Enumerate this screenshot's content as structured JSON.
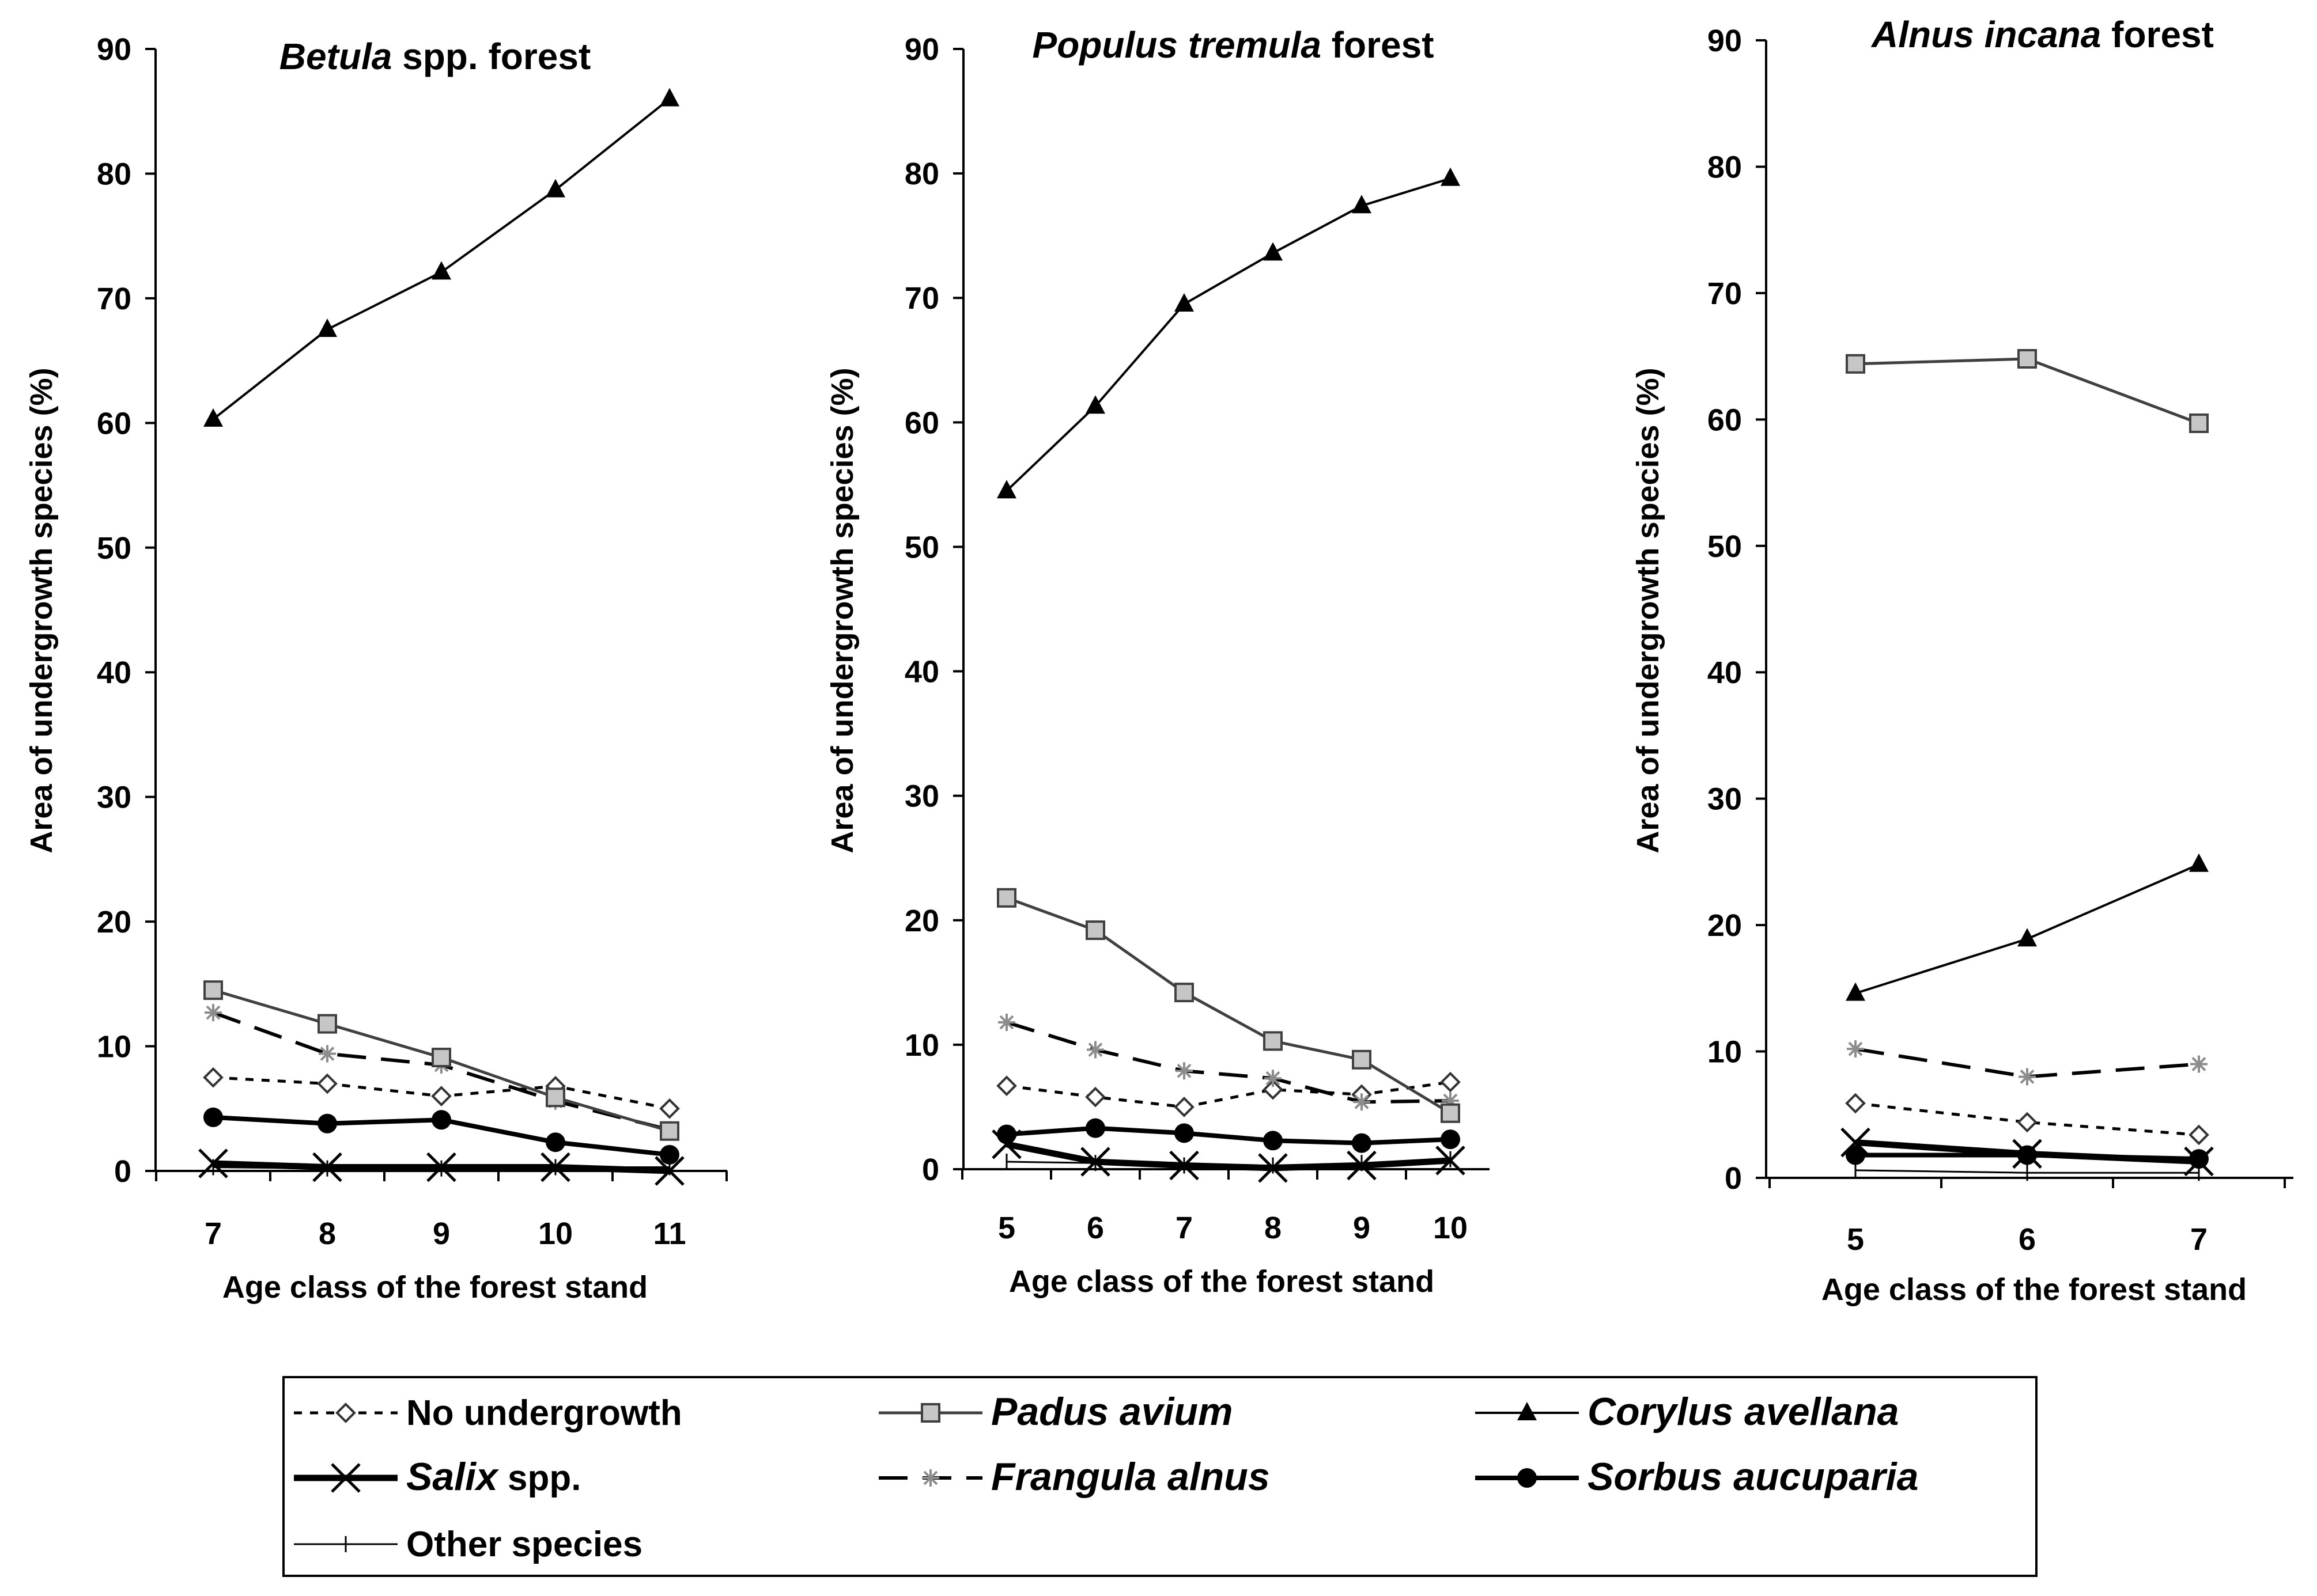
{
  "chart_data": [
    {
      "type": "line",
      "title_italic": "Betula",
      "title_rest": " spp. forest",
      "xlabel": "Age class of the forest stand",
      "ylabel": "Area of undergrowth species (%)",
      "ylim": [
        0,
        90
      ],
      "yticks": [
        "0",
        "10",
        "20",
        "30",
        "40",
        "50",
        "60",
        "70",
        "80",
        "90"
      ],
      "categories": [
        "7",
        "8",
        "9",
        "10",
        "11"
      ],
      "series": [
        {
          "name": "No undergrowth",
          "values": [
            7.5,
            7.0,
            6.0,
            6.8,
            5.0
          ]
        },
        {
          "name": "Padus avium",
          "values": [
            14.5,
            11.8,
            9.1,
            5.9,
            3.2
          ]
        },
        {
          "name": "Corylus avellana",
          "values": [
            60.3,
            67.5,
            72.1,
            78.7,
            86.0
          ]
        },
        {
          "name": "Salix spp.",
          "values": [
            0.6,
            0.3,
            0.3,
            0.3,
            0.0
          ]
        },
        {
          "name": "Frangula alnus",
          "values": [
            12.7,
            9.4,
            8.5,
            5.6,
            3.3
          ]
        },
        {
          "name": "Sorbus aucuparia",
          "values": [
            4.3,
            3.8,
            4.1,
            2.3,
            1.3
          ]
        },
        {
          "name": "Other species",
          "values": [
            0.3,
            0.2,
            0.2,
            0.3,
            0.3
          ]
        }
      ]
    },
    {
      "type": "line",
      "title_italic": "Populus tremula",
      "title_rest": " forest",
      "xlabel": "Age class of the forest stand",
      "ylabel": "Area of undergrowth species (%)",
      "ylim": [
        0,
        90
      ],
      "yticks": [
        "0",
        "10",
        "20",
        "30",
        "40",
        "50",
        "60",
        "70",
        "80",
        "90"
      ],
      "categories": [
        "5",
        "6",
        "7",
        "8",
        "9",
        "10"
      ],
      "series": [
        {
          "name": "No undergrowth",
          "values": [
            6.7,
            5.8,
            5.0,
            6.4,
            6.0,
            7.0
          ]
        },
        {
          "name": "Padus avium",
          "values": [
            21.8,
            19.2,
            14.2,
            10.3,
            8.8,
            4.5
          ]
        },
        {
          "name": "Corylus avellana",
          "values": [
            54.5,
            61.3,
            69.5,
            73.6,
            77.4,
            79.6
          ]
        },
        {
          "name": "Salix spp.",
          "values": [
            2.0,
            0.6,
            0.3,
            0.1,
            0.3,
            0.7
          ]
        },
        {
          "name": "Frangula alnus",
          "values": [
            11.8,
            9.6,
            7.9,
            7.3,
            5.4,
            5.5
          ]
        },
        {
          "name": "Sorbus aucuparia",
          "values": [
            2.8,
            3.3,
            2.9,
            2.3,
            2.1,
            2.4
          ]
        },
        {
          "name": "Other species",
          "values": [
            0.6,
            0.5,
            0.3,
            0.3,
            0.5,
            0.8
          ]
        }
      ]
    },
    {
      "type": "line",
      "title_italic": "Alnus incana",
      "title_rest": "  forest",
      "xlabel": "Age class of the forest stand",
      "ylabel": "Area of undergrowth species (%)",
      "ylim": [
        0,
        90
      ],
      "yticks": [
        "0",
        "10",
        "20",
        "30",
        "40",
        "50",
        "60",
        "70",
        "80",
        "90"
      ],
      "categories": [
        "5",
        "6",
        "7"
      ],
      "series": [
        {
          "name": "No undergrowth",
          "values": [
            5.9,
            4.4,
            3.4
          ]
        },
        {
          "name": "Padus avium",
          "values": [
            64.4,
            64.8,
            59.7
          ]
        },
        {
          "name": "Corylus avellana",
          "values": [
            14.6,
            18.9,
            24.8
          ]
        },
        {
          "name": "Salix spp.",
          "values": [
            2.8,
            1.9,
            1.3
          ]
        },
        {
          "name": "Frangula alnus",
          "values": [
            10.2,
            8.0,
            9.0
          ]
        },
        {
          "name": "Sorbus aucuparia",
          "values": [
            1.8,
            1.8,
            1.5
          ]
        },
        {
          "name": "Other species",
          "values": [
            0.6,
            0.4,
            0.4
          ]
        }
      ]
    }
  ],
  "legend": {
    "items": [
      {
        "name": "No undergrowth",
        "label_italic": "",
        "label_rest": "No undergrowth"
      },
      {
        "name": "Padus avium",
        "label_italic": "Padus avium",
        "label_rest": ""
      },
      {
        "name": "Corylus avellana",
        "label_italic": "Corylus avellana",
        "label_rest": ""
      },
      {
        "name": "Salix spp.",
        "label_italic": "Salix",
        "label_rest": " spp."
      },
      {
        "name": "Frangula alnus",
        "label_italic": "Frangula alnus",
        "label_rest": ""
      },
      {
        "name": "Sorbus aucuparia",
        "label_italic": "Sorbus aucuparia",
        "label_rest": ""
      },
      {
        "name": "Other species",
        "label_italic": "",
        "label_rest": "Other species"
      }
    ]
  }
}
